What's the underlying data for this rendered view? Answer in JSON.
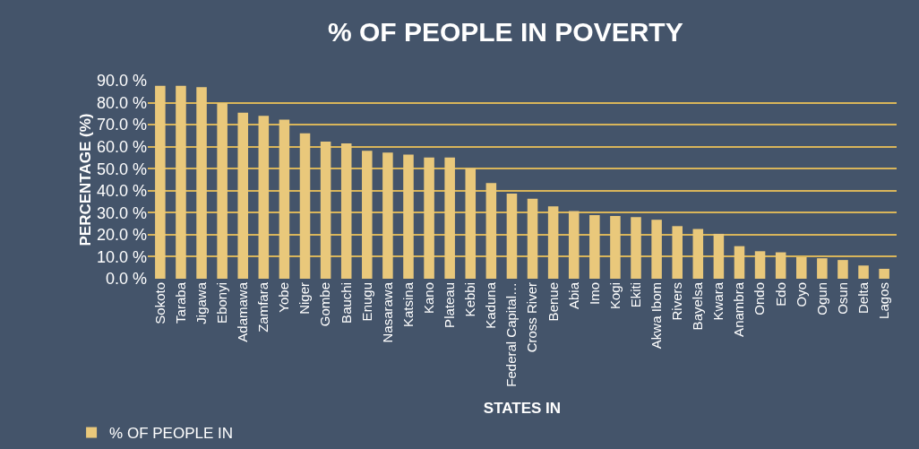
{
  "chart_data": {
    "type": "bar",
    "title": "% OF PEOPLE IN POVERTY",
    "xlabel": "STATES IN",
    "ylabel": "PERCENTAGE (%)",
    "categories": [
      "Sokoto",
      "Taraba",
      "Jigawa",
      "Ebonyi",
      "Adamawa",
      "Zamfara",
      "Yobe",
      "Niger",
      "Gombe",
      "Bauchi",
      "Enugu",
      "Nasarawa",
      "Katsina",
      "Kano",
      "Plateau",
      "Kebbi",
      "Kaduna",
      "Federal Capital…",
      "Cross River",
      "Benue",
      "Abia",
      "Imo",
      "Kogi",
      "Ekiti",
      "Akwa Ibom",
      "Rivers",
      "Bayelsa",
      "Kwara",
      "Anambra",
      "Ondo",
      "Edo",
      "Oyo",
      "Ogun",
      "Osun",
      "Delta",
      "Lagos"
    ],
    "series": [
      {
        "name": "% OF PEOPLE IN",
        "color": "#e9c87b",
        "values": [
          87.7,
          87.7,
          87.0,
          79.8,
          75.4,
          74.0,
          72.3,
          66.1,
          62.3,
          61.5,
          58.1,
          57.3,
          56.4,
          55.1,
          55.1,
          50.2,
          43.5,
          38.7,
          36.3,
          32.9,
          30.7,
          28.9,
          28.5,
          28.0,
          26.8,
          23.9,
          22.6,
          20.4,
          14.8,
          12.5,
          12.0,
          9.8,
          9.3,
          8.5,
          6.0,
          4.5
        ]
      }
    ],
    "ylim": [
      0,
      90
    ],
    "yticks": [
      {
        "value": 0,
        "label": "0.0 %"
      },
      {
        "value": 10,
        "label": "10.0 %"
      },
      {
        "value": 20,
        "label": "20.0 %"
      },
      {
        "value": 30,
        "label": "30.0 %"
      },
      {
        "value": 40,
        "label": "40.0 %"
      },
      {
        "value": 50,
        "label": "50.0 %"
      },
      {
        "value": 60,
        "label": "60.0 %"
      },
      {
        "value": 70,
        "label": "70.0 %"
      },
      {
        "value": 80,
        "label": "80.0 %"
      },
      {
        "value": 90,
        "label": "90.0 %"
      }
    ],
    "grid": "y",
    "legend": "bottom left"
  }
}
